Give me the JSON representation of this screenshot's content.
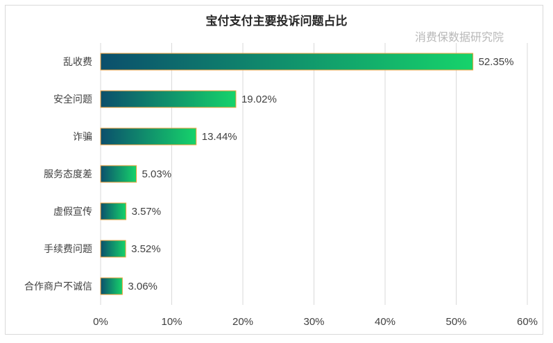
{
  "chart_data": {
    "type": "bar",
    "orientation": "horizontal",
    "title": "宝付支付主要投诉问题占比",
    "watermark": "消费保数据研究院",
    "categories": [
      "乱收费",
      "安全问题",
      "诈骗",
      "服务态度差",
      "虚假宣传",
      "手续费问题",
      "合作商户不诚信"
    ],
    "values": [
      52.35,
      19.02,
      13.44,
      5.03,
      3.57,
      3.52,
      3.06
    ],
    "value_labels": [
      "52.35%",
      "19.02%",
      "13.44%",
      "5.03%",
      "3.57%",
      "3.52%",
      "3.06%"
    ],
    "xlim": [
      0,
      60
    ],
    "x_ticks": [
      "0%",
      "10%",
      "20%",
      "30%",
      "40%",
      "50%",
      "60%"
    ],
    "grid": "vertical",
    "colors": {
      "bar_start": "#0b4f6c",
      "bar_end": "#16d36b",
      "bar_outline": "#f2a13b",
      "grid": "#d9d9d9"
    }
  }
}
